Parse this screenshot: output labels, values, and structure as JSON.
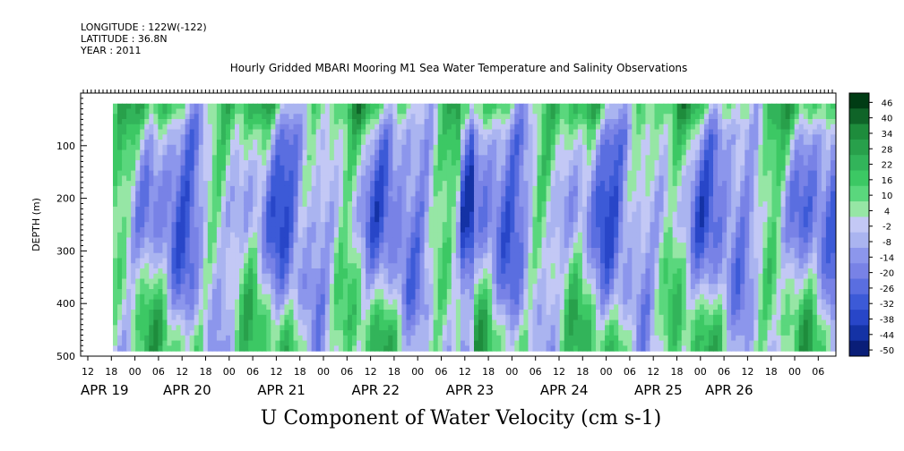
{
  "header": {
    "longitude": "LONGITUDE : 122W(-122)",
    "latitude": "LATITUDE : 36.8N",
    "year": "YEAR : 2011"
  },
  "chart_data": {
    "type": "heatmap",
    "title": "Hourly Gridded MBARI Mooring M1 Sea Water Temperature and Salinity Observations",
    "xlabel": "U Component of Water Velocity (cm s-1)",
    "ylabel": "DEPTH (m)",
    "ylim": [
      500,
      0
    ],
    "y_ticks": [
      100,
      200,
      300,
      400,
      500
    ],
    "x_hour_ticks": [
      "12",
      "18",
      "00",
      "06",
      "12",
      "18",
      "00",
      "06",
      "12",
      "18",
      "00",
      "06",
      "12",
      "18",
      "00",
      "06",
      "12",
      "18",
      "00",
      "06",
      "12",
      "18",
      "00",
      "06",
      "12",
      "18",
      "00",
      "06",
      "12",
      "18",
      "00",
      "06"
    ],
    "x_day_labels": [
      "APR 19",
      "APR 20",
      "APR 21",
      "APR 22",
      "APR 23",
      "APR 24",
      "APR 25",
      "APR 26"
    ],
    "colorbar": {
      "labels": [
        "46",
        "40",
        "34",
        "28",
        "22",
        "16",
        "10",
        "4",
        "-2",
        "-8",
        "-14",
        "-20",
        "-26",
        "-32",
        "-38",
        "-44",
        "-50"
      ],
      "range": [
        -50,
        50
      ]
    },
    "colors": {
      "positive": "#3cc864",
      "negative": "#8c8cf0",
      "strong_negative": "#3c64e6",
      "positive_dark": "#1e8c3c"
    }
  }
}
